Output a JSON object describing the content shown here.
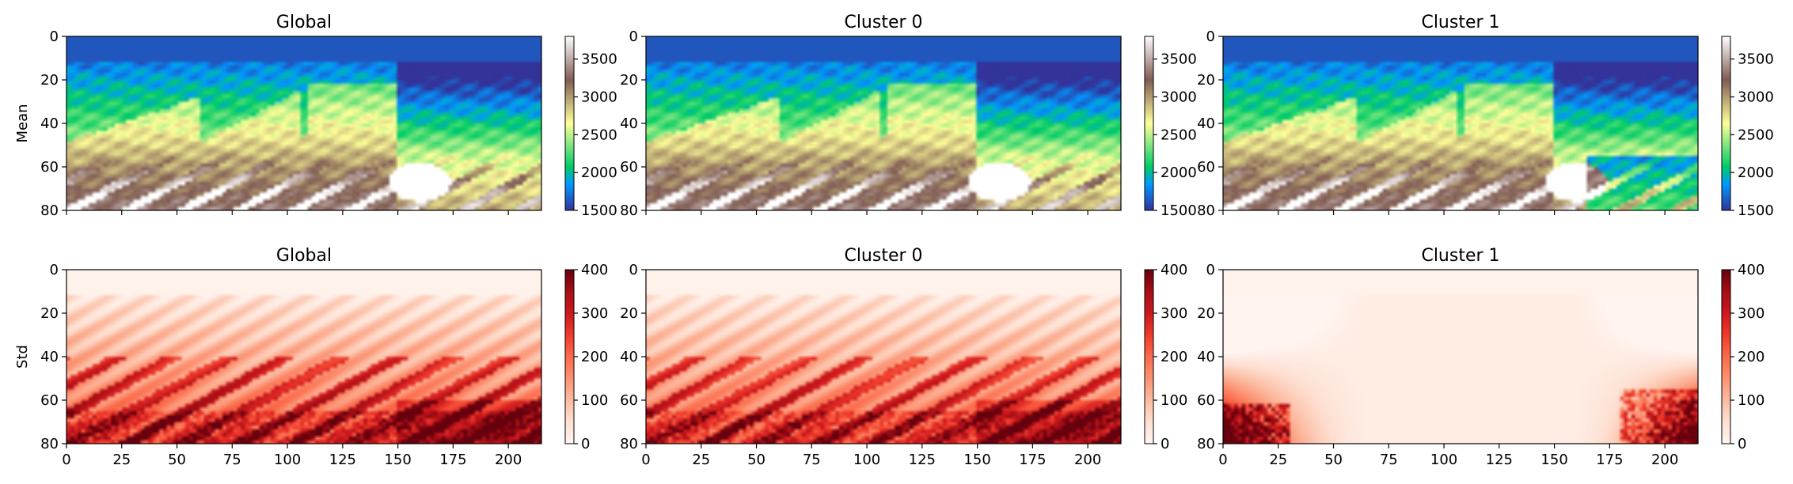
{
  "chart_data": [
    {
      "type": "heatmap",
      "title": "Global",
      "ylabel": "Mean",
      "variant": "mean",
      "xlim": [
        0,
        215
      ],
      "ylim": [
        80,
        0
      ],
      "xticks": [],
      "yticks": [
        0,
        20,
        40,
        60,
        80
      ],
      "colorbar": {
        "colormap": "terrain",
        "range": [
          1500,
          3800
        ],
        "ticks": [
          1500,
          2000,
          2500,
          3000,
          3500
        ]
      }
    },
    {
      "type": "heatmap",
      "title": "Cluster 0",
      "ylabel": "",
      "variant": "mean",
      "xlim": [
        0,
        215
      ],
      "ylim": [
        80,
        0
      ],
      "xticks": [],
      "yticks": [
        0,
        20,
        40,
        60,
        80
      ],
      "colorbar": {
        "colormap": "terrain",
        "range": [
          1500,
          3800
        ],
        "ticks": [
          1500,
          2000,
          2500,
          3000,
          3500
        ]
      }
    },
    {
      "type": "heatmap",
      "title": "Cluster 1",
      "ylabel": "",
      "variant": "mean1",
      "xlim": [
        0,
        215
      ],
      "ylim": [
        80,
        0
      ],
      "xticks": [],
      "yticks": [
        0,
        20,
        40,
        60,
        80
      ],
      "colorbar": {
        "colormap": "terrain",
        "range": [
          1500,
          3800
        ],
        "ticks": [
          1500,
          2000,
          2500,
          3000,
          3500
        ]
      }
    },
    {
      "type": "heatmap",
      "title": "Global",
      "ylabel": "Std",
      "variant": "stdg",
      "xlim": [
        0,
        215
      ],
      "ylim": [
        80,
        0
      ],
      "xticks": [
        0,
        25,
        50,
        75,
        100,
        125,
        150,
        175,
        200
      ],
      "yticks": [
        0,
        20,
        40,
        60,
        80
      ],
      "colorbar": {
        "colormap": "reds",
        "range": [
          0,
          400
        ],
        "ticks": [
          0,
          100,
          200,
          300,
          400
        ]
      }
    },
    {
      "type": "heatmap",
      "title": "Cluster 0",
      "ylabel": "",
      "variant": "std0",
      "xlim": [
        0,
        215
      ],
      "ylim": [
        80,
        0
      ],
      "xticks": [
        0,
        25,
        50,
        75,
        100,
        125,
        150,
        175,
        200
      ],
      "yticks": [
        0,
        20,
        40,
        60,
        80
      ],
      "colorbar": {
        "colormap": "reds",
        "range": [
          0,
          400
        ],
        "ticks": [
          0,
          100,
          200,
          300,
          400
        ]
      }
    },
    {
      "type": "heatmap",
      "title": "Cluster 1",
      "ylabel": "",
      "variant": "std1",
      "xlim": [
        0,
        215
      ],
      "ylim": [
        80,
        0
      ],
      "xticks": [
        0,
        25,
        50,
        75,
        100,
        125,
        150,
        175,
        200
      ],
      "yticks": [
        0,
        20,
        40,
        60,
        80
      ],
      "colorbar": {
        "colormap": "reds",
        "range": [
          0,
          400
        ],
        "ticks": [
          0,
          100,
          200,
          300,
          400
        ]
      }
    }
  ]
}
